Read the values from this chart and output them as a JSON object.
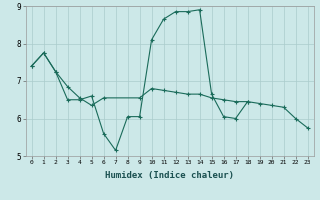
{
  "xlabel": "Humidex (Indice chaleur)",
  "x": [
    0,
    1,
    2,
    3,
    4,
    5,
    6,
    7,
    8,
    9,
    10,
    11,
    12,
    13,
    14,
    15,
    16,
    17,
    18,
    19,
    20,
    21,
    22,
    23
  ],
  "line1_x": [
    0,
    1,
    2,
    3,
    4,
    5,
    6,
    9,
    10,
    11,
    12,
    13,
    14,
    15,
    16,
    17,
    18,
    19,
    20,
    21,
    22,
    23
  ],
  "line1_y": [
    7.4,
    7.75,
    7.25,
    6.85,
    6.55,
    6.35,
    6.55,
    6.55,
    6.8,
    6.75,
    6.7,
    6.65,
    6.65,
    6.55,
    6.5,
    6.45,
    6.45,
    6.4,
    6.35,
    6.3,
    6.0,
    5.75
  ],
  "line2_x": [
    0,
    1,
    2,
    3,
    4,
    5,
    6,
    7,
    8,
    9,
    10,
    11,
    12,
    13,
    14,
    15,
    16,
    17,
    18
  ],
  "line2_y": [
    7.4,
    7.75,
    7.25,
    6.5,
    6.5,
    6.6,
    5.6,
    5.15,
    6.05,
    6.05,
    8.1,
    8.65,
    8.85,
    8.85,
    8.9,
    6.65,
    6.05,
    6.0,
    6.45
  ],
  "bg_color": "#cce8e8",
  "grid_color": "#aacccc",
  "line_color": "#1a6b5a",
  "ylim": [
    5,
    9
  ],
  "yticks": [
    5,
    6,
    7,
    8,
    9
  ],
  "xlim": [
    -0.5,
    23.5
  ]
}
